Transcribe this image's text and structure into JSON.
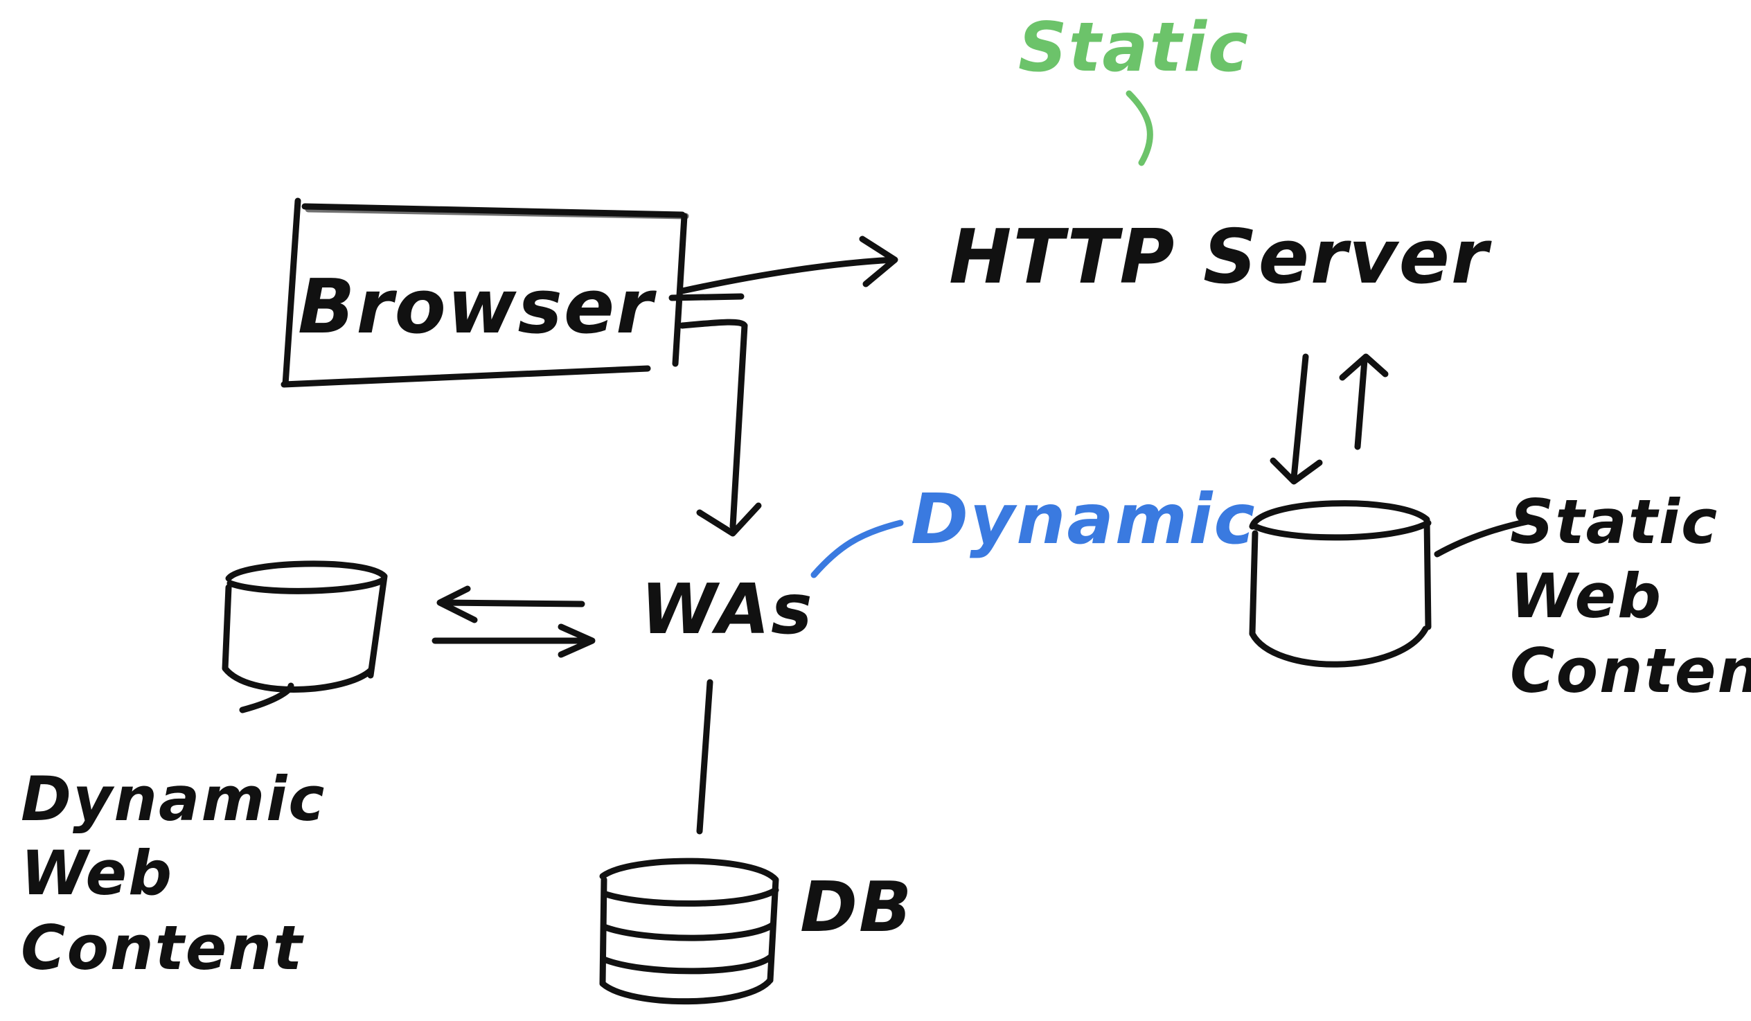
{
  "colors": {
    "ink": "#111111",
    "static": "#6cc36a",
    "dynamic": "#3a7ae0"
  },
  "labels": {
    "static_top": "Static",
    "browser": "Browser",
    "http_server": "HTTP Server",
    "was": "WAs",
    "dynamic": "Dynamic",
    "db": "DB",
    "dynamic_web_content": [
      "Dynamic",
      "Web",
      "Content"
    ],
    "static_web_content": [
      "Static",
      "Web",
      "Content"
    ]
  }
}
